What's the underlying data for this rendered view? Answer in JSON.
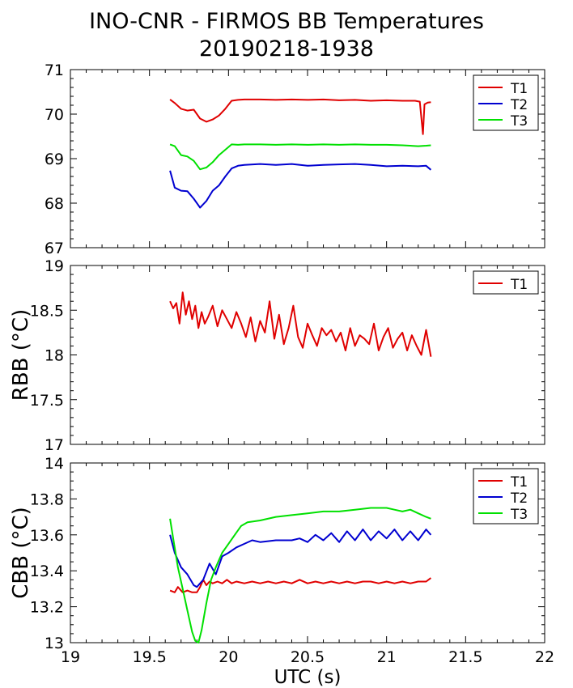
{
  "title_line1": "INO-CNR - FIRMOS BB Temperatures",
  "title_line2": "20190218-1938",
  "colors": {
    "T1": "#e00000",
    "T2": "#0000d0",
    "T3": "#00e000"
  },
  "chart_data": [
    {
      "type": "line",
      "ylabel": "",
      "ylim": [
        67,
        71
      ],
      "yticks": [
        "67",
        "68",
        "69",
        "70",
        "71"
      ],
      "xlim": [
        19,
        22
      ],
      "legend": "top-right",
      "series": [
        {
          "name": "T1",
          "color": "#e00000",
          "x": [
            19.63,
            19.66,
            19.7,
            19.74,
            19.78,
            19.82,
            19.86,
            19.9,
            19.94,
            19.98,
            20.02,
            20.06,
            20.1,
            20.2,
            20.3,
            20.4,
            20.5,
            20.6,
            20.7,
            20.8,
            20.9,
            21.0,
            21.1,
            21.18,
            21.21,
            21.23,
            21.24,
            21.26,
            21.28
          ],
          "y": [
            70.33,
            70.25,
            70.12,
            70.08,
            70.1,
            69.9,
            69.83,
            69.88,
            69.97,
            70.12,
            70.3,
            70.32,
            70.33,
            70.33,
            70.32,
            70.33,
            70.32,
            70.33,
            70.31,
            70.32,
            70.3,
            70.31,
            70.3,
            70.3,
            70.28,
            69.55,
            70.22,
            70.26,
            70.27
          ]
        },
        {
          "name": "T2",
          "color": "#0000d0",
          "x": [
            19.63,
            19.66,
            19.7,
            19.74,
            19.78,
            19.82,
            19.86,
            19.9,
            19.94,
            19.98,
            20.02,
            20.06,
            20.1,
            20.2,
            20.3,
            20.4,
            20.5,
            20.6,
            20.7,
            20.8,
            20.9,
            21.0,
            21.1,
            21.2,
            21.25,
            21.28
          ],
          "y": [
            68.73,
            68.35,
            68.28,
            68.27,
            68.1,
            67.9,
            68.05,
            68.28,
            68.4,
            68.6,
            68.78,
            68.84,
            68.86,
            68.88,
            68.86,
            68.88,
            68.84,
            68.86,
            68.87,
            68.88,
            68.86,
            68.83,
            68.84,
            68.83,
            68.84,
            68.75
          ]
        },
        {
          "name": "T3",
          "color": "#00e000",
          "x": [
            19.63,
            19.66,
            19.7,
            19.74,
            19.78,
            19.82,
            19.86,
            19.9,
            19.94,
            19.98,
            20.02,
            20.06,
            20.1,
            20.2,
            20.3,
            20.4,
            20.5,
            20.6,
            20.7,
            20.8,
            20.9,
            21.0,
            21.1,
            21.2,
            21.25,
            21.28
          ],
          "y": [
            69.32,
            69.28,
            69.08,
            69.05,
            68.95,
            68.76,
            68.8,
            68.92,
            69.08,
            69.2,
            69.32,
            69.31,
            69.32,
            69.32,
            69.31,
            69.32,
            69.31,
            69.32,
            69.31,
            69.32,
            69.31,
            69.31,
            69.3,
            69.28,
            69.29,
            69.3
          ]
        }
      ]
    },
    {
      "type": "line",
      "ylabel": "RBB (°C)",
      "ylim": [
        17,
        19
      ],
      "yticks": [
        "17",
        "17.5",
        "18",
        "18.5",
        "19"
      ],
      "xlim": [
        19,
        22
      ],
      "legend": "top-right",
      "series": [
        {
          "name": "T1",
          "color": "#e00000",
          "x": [
            19.63,
            19.65,
            19.67,
            19.69,
            19.71,
            19.73,
            19.75,
            19.77,
            19.79,
            19.81,
            19.83,
            19.85,
            19.87,
            19.9,
            19.93,
            19.96,
            19.99,
            20.02,
            20.05,
            20.08,
            20.11,
            20.14,
            20.17,
            20.2,
            20.23,
            20.26,
            20.29,
            20.32,
            20.35,
            20.38,
            20.41,
            20.44,
            20.47,
            20.5,
            20.53,
            20.56,
            20.59,
            20.62,
            20.65,
            20.68,
            20.71,
            20.74,
            20.77,
            20.8,
            20.83,
            20.86,
            20.89,
            20.92,
            20.95,
            20.98,
            21.01,
            21.04,
            21.07,
            21.1,
            21.13,
            21.16,
            21.19,
            21.22,
            21.25,
            21.28
          ],
          "y": [
            18.6,
            18.52,
            18.58,
            18.35,
            18.7,
            18.45,
            18.6,
            18.4,
            18.55,
            18.3,
            18.48,
            18.35,
            18.42,
            18.55,
            18.32,
            18.5,
            18.4,
            18.3,
            18.48,
            18.35,
            18.2,
            18.42,
            18.15,
            18.38,
            18.25,
            18.6,
            18.18,
            18.45,
            18.12,
            18.3,
            18.55,
            18.2,
            18.08,
            18.35,
            18.22,
            18.1,
            18.3,
            18.22,
            18.28,
            18.15,
            18.25,
            18.05,
            18.3,
            18.1,
            18.22,
            18.18,
            18.12,
            18.35,
            18.05,
            18.2,
            18.3,
            18.08,
            18.18,
            18.25,
            18.05,
            18.22,
            18.1,
            18.0,
            18.28,
            17.98
          ]
        }
      ]
    },
    {
      "type": "line",
      "ylabel": "CBB (°C)",
      "ylim": [
        13,
        14
      ],
      "yticks": [
        "13",
        "13.2",
        "13.4",
        "13.6",
        "13.8",
        "14"
      ],
      "xlim": [
        19,
        22
      ],
      "xticks": [
        "19",
        "19.5",
        "20",
        "20.5",
        "21",
        "21.5",
        "22"
      ],
      "xlabel": "UTC (s)",
      "legend": "top-right",
      "series": [
        {
          "name": "T1",
          "color": "#e00000",
          "x": [
            19.63,
            19.66,
            19.68,
            19.71,
            19.74,
            19.77,
            19.8,
            19.82,
            19.84,
            19.86,
            19.88,
            19.9,
            19.93,
            19.96,
            19.99,
            20.02,
            20.05,
            20.1,
            20.15,
            20.2,
            20.25,
            20.3,
            20.35,
            20.4,
            20.45,
            20.5,
            20.55,
            20.6,
            20.65,
            20.7,
            20.75,
            20.8,
            20.85,
            20.9,
            20.95,
            21.0,
            21.05,
            21.1,
            21.15,
            21.2,
            21.25,
            21.28
          ],
          "y": [
            13.29,
            13.28,
            13.31,
            13.28,
            13.29,
            13.28,
            13.28,
            13.31,
            13.35,
            13.32,
            13.34,
            13.33,
            13.34,
            13.33,
            13.35,
            13.33,
            13.34,
            13.33,
            13.34,
            13.33,
            13.34,
            13.33,
            13.34,
            13.33,
            13.35,
            13.33,
            13.34,
            13.33,
            13.34,
            13.33,
            13.34,
            13.33,
            13.34,
            13.34,
            13.33,
            13.34,
            13.33,
            13.34,
            13.33,
            13.34,
            13.34,
            13.36
          ]
        },
        {
          "name": "T2",
          "color": "#0000d0",
          "x": [
            19.63,
            19.66,
            19.7,
            19.74,
            19.78,
            19.8,
            19.84,
            19.88,
            19.92,
            19.96,
            20.0,
            20.05,
            20.1,
            20.15,
            20.2,
            20.3,
            20.4,
            20.45,
            20.5,
            20.55,
            20.6,
            20.65,
            20.7,
            20.75,
            20.8,
            20.85,
            20.9,
            20.95,
            21.0,
            21.05,
            21.1,
            21.15,
            21.2,
            21.25,
            21.28
          ],
          "y": [
            13.6,
            13.5,
            13.42,
            13.38,
            13.32,
            13.31,
            13.35,
            13.44,
            13.38,
            13.48,
            13.5,
            13.53,
            13.55,
            13.57,
            13.56,
            13.57,
            13.57,
            13.58,
            13.56,
            13.6,
            13.57,
            13.61,
            13.56,
            13.62,
            13.57,
            13.63,
            13.57,
            13.62,
            13.58,
            13.63,
            13.57,
            13.62,
            13.57,
            13.63,
            13.6
          ]
        },
        {
          "name": "T3",
          "color": "#00e000",
          "x": [
            19.63,
            19.65,
            19.68,
            19.71,
            19.74,
            19.77,
            19.79,
            19.81,
            19.83,
            19.86,
            19.89,
            19.92,
            19.96,
            20.0,
            20.04,
            20.08,
            20.12,
            20.2,
            20.3,
            20.4,
            20.5,
            20.6,
            20.7,
            20.8,
            20.9,
            21.0,
            21.05,
            21.1,
            21.15,
            21.2,
            21.25,
            21.28
          ],
          "y": [
            13.69,
            13.58,
            13.42,
            13.3,
            13.18,
            13.06,
            13.01,
            13.0,
            13.07,
            13.22,
            13.35,
            13.42,
            13.5,
            13.55,
            13.6,
            13.65,
            13.67,
            13.68,
            13.7,
            13.71,
            13.72,
            13.73,
            13.73,
            13.74,
            13.75,
            13.75,
            13.74,
            13.73,
            13.74,
            13.72,
            13.7,
            13.69
          ]
        }
      ]
    }
  ]
}
